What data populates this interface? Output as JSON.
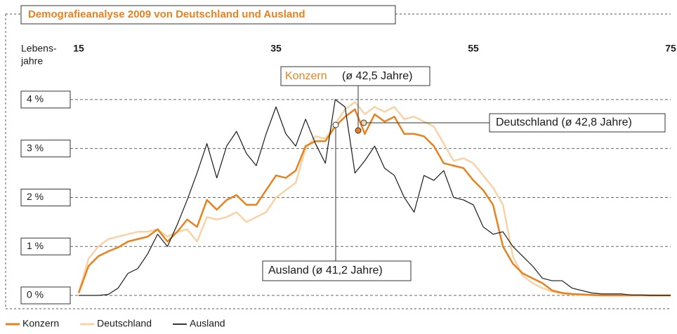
{
  "chart_data": {
    "type": "line",
    "title": "Demografieanalyse 2009 von Deutschland und Ausland",
    "x_label": [
      "Lebens-",
      "jahre"
    ],
    "x": [
      15,
      16,
      17,
      18,
      19,
      20,
      21,
      22,
      23,
      24,
      25,
      26,
      27,
      28,
      29,
      30,
      31,
      32,
      33,
      34,
      35,
      36,
      37,
      38,
      39,
      40,
      41,
      42,
      43,
      44,
      45,
      46,
      47,
      48,
      49,
      50,
      51,
      52,
      53,
      54,
      55,
      56,
      57,
      58,
      59,
      60,
      61,
      62,
      63,
      64,
      65,
      66,
      67,
      68,
      69,
      70,
      71,
      72,
      73,
      74,
      75
    ],
    "xlim": [
      15,
      75
    ],
    "xticks": [
      15,
      35,
      55,
      75
    ],
    "ylim": [
      0,
      4.4
    ],
    "yticks": [
      {
        "value": 0,
        "label": "0 %"
      },
      {
        "value": 1,
        "label": "1 %"
      },
      {
        "value": 2,
        "label": "2 %"
      },
      {
        "value": 3,
        "label": "3 %"
      },
      {
        "value": 4,
        "label": "4 %"
      }
    ],
    "grid": true,
    "legend": "bottom-left",
    "series": [
      {
        "name": "Konzern",
        "color": "#e8821e",
        "width": 2.5,
        "values": [
          0.05,
          0.6,
          0.8,
          0.9,
          0.98,
          1.1,
          1.15,
          1.2,
          1.35,
          1.1,
          1.3,
          1.55,
          1.4,
          1.95,
          1.75,
          1.95,
          2.05,
          1.85,
          1.85,
          2.15,
          2.45,
          2.4,
          2.55,
          3.05,
          3.15,
          3.15,
          3.45,
          3.65,
          3.8,
          3.3,
          3.7,
          3.55,
          3.65,
          3.3,
          3.3,
          3.25,
          3.05,
          2.7,
          2.65,
          2.6,
          2.35,
          2.15,
          1.85,
          1.0,
          0.65,
          0.45,
          0.35,
          0.25,
          0.1,
          0.05,
          0.03,
          0.02,
          0.01,
          0,
          0,
          0,
          0,
          0,
          0,
          0,
          0
        ]
      },
      {
        "name": "Deutschland",
        "color": "#f7d3a6",
        "width": 2.5,
        "values": [
          0.05,
          0.75,
          1.0,
          1.15,
          1.2,
          1.25,
          1.3,
          1.3,
          1.35,
          1.2,
          1.3,
          1.35,
          1.1,
          1.6,
          1.55,
          1.6,
          1.7,
          1.5,
          1.6,
          1.7,
          2.0,
          2.15,
          2.3,
          3.0,
          3.25,
          3.2,
          3.5,
          3.8,
          3.95,
          3.7,
          3.85,
          3.75,
          3.85,
          3.6,
          3.65,
          3.55,
          3.45,
          3.1,
          2.75,
          2.8,
          2.7,
          2.45,
          2.2,
          1.85,
          0.8,
          0.4,
          0.25,
          0.15,
          0.08,
          0.04,
          0.02,
          0.01,
          0,
          0,
          0,
          0,
          0,
          0,
          0,
          0,
          0
        ]
      },
      {
        "name": "Ausland",
        "color": "#1a1a1a",
        "width": 1.2,
        "values": [
          0,
          0,
          0,
          0.02,
          0.15,
          0.45,
          0.55,
          0.85,
          1.25,
          1.0,
          1.45,
          1.95,
          2.5,
          3.1,
          2.4,
          3.05,
          3.35,
          2.9,
          2.65,
          3.3,
          3.85,
          3.3,
          3.05,
          3.6,
          3.1,
          2.7,
          4.0,
          3.85,
          2.5,
          2.75,
          3.05,
          2.6,
          2.45,
          2.0,
          1.7,
          2.45,
          2.35,
          2.55,
          2.0,
          1.95,
          1.85,
          1.4,
          1.25,
          1.3,
          1.0,
          0.8,
          0.6,
          0.35,
          0.3,
          0.3,
          0.15,
          0.1,
          0.05,
          0.03,
          0.03,
          0.03,
          0.01,
          0.01,
          0,
          0,
          0
        ]
      }
    ],
    "annotations": [
      {
        "label": "Konzern",
        "text": "(ø 42,5 Jahre)"
      },
      {
        "label": "Deutschland (ø 42,8 Jahre)"
      },
      {
        "label": "Ausland (ø 41,2 Jahre)"
      }
    ]
  }
}
